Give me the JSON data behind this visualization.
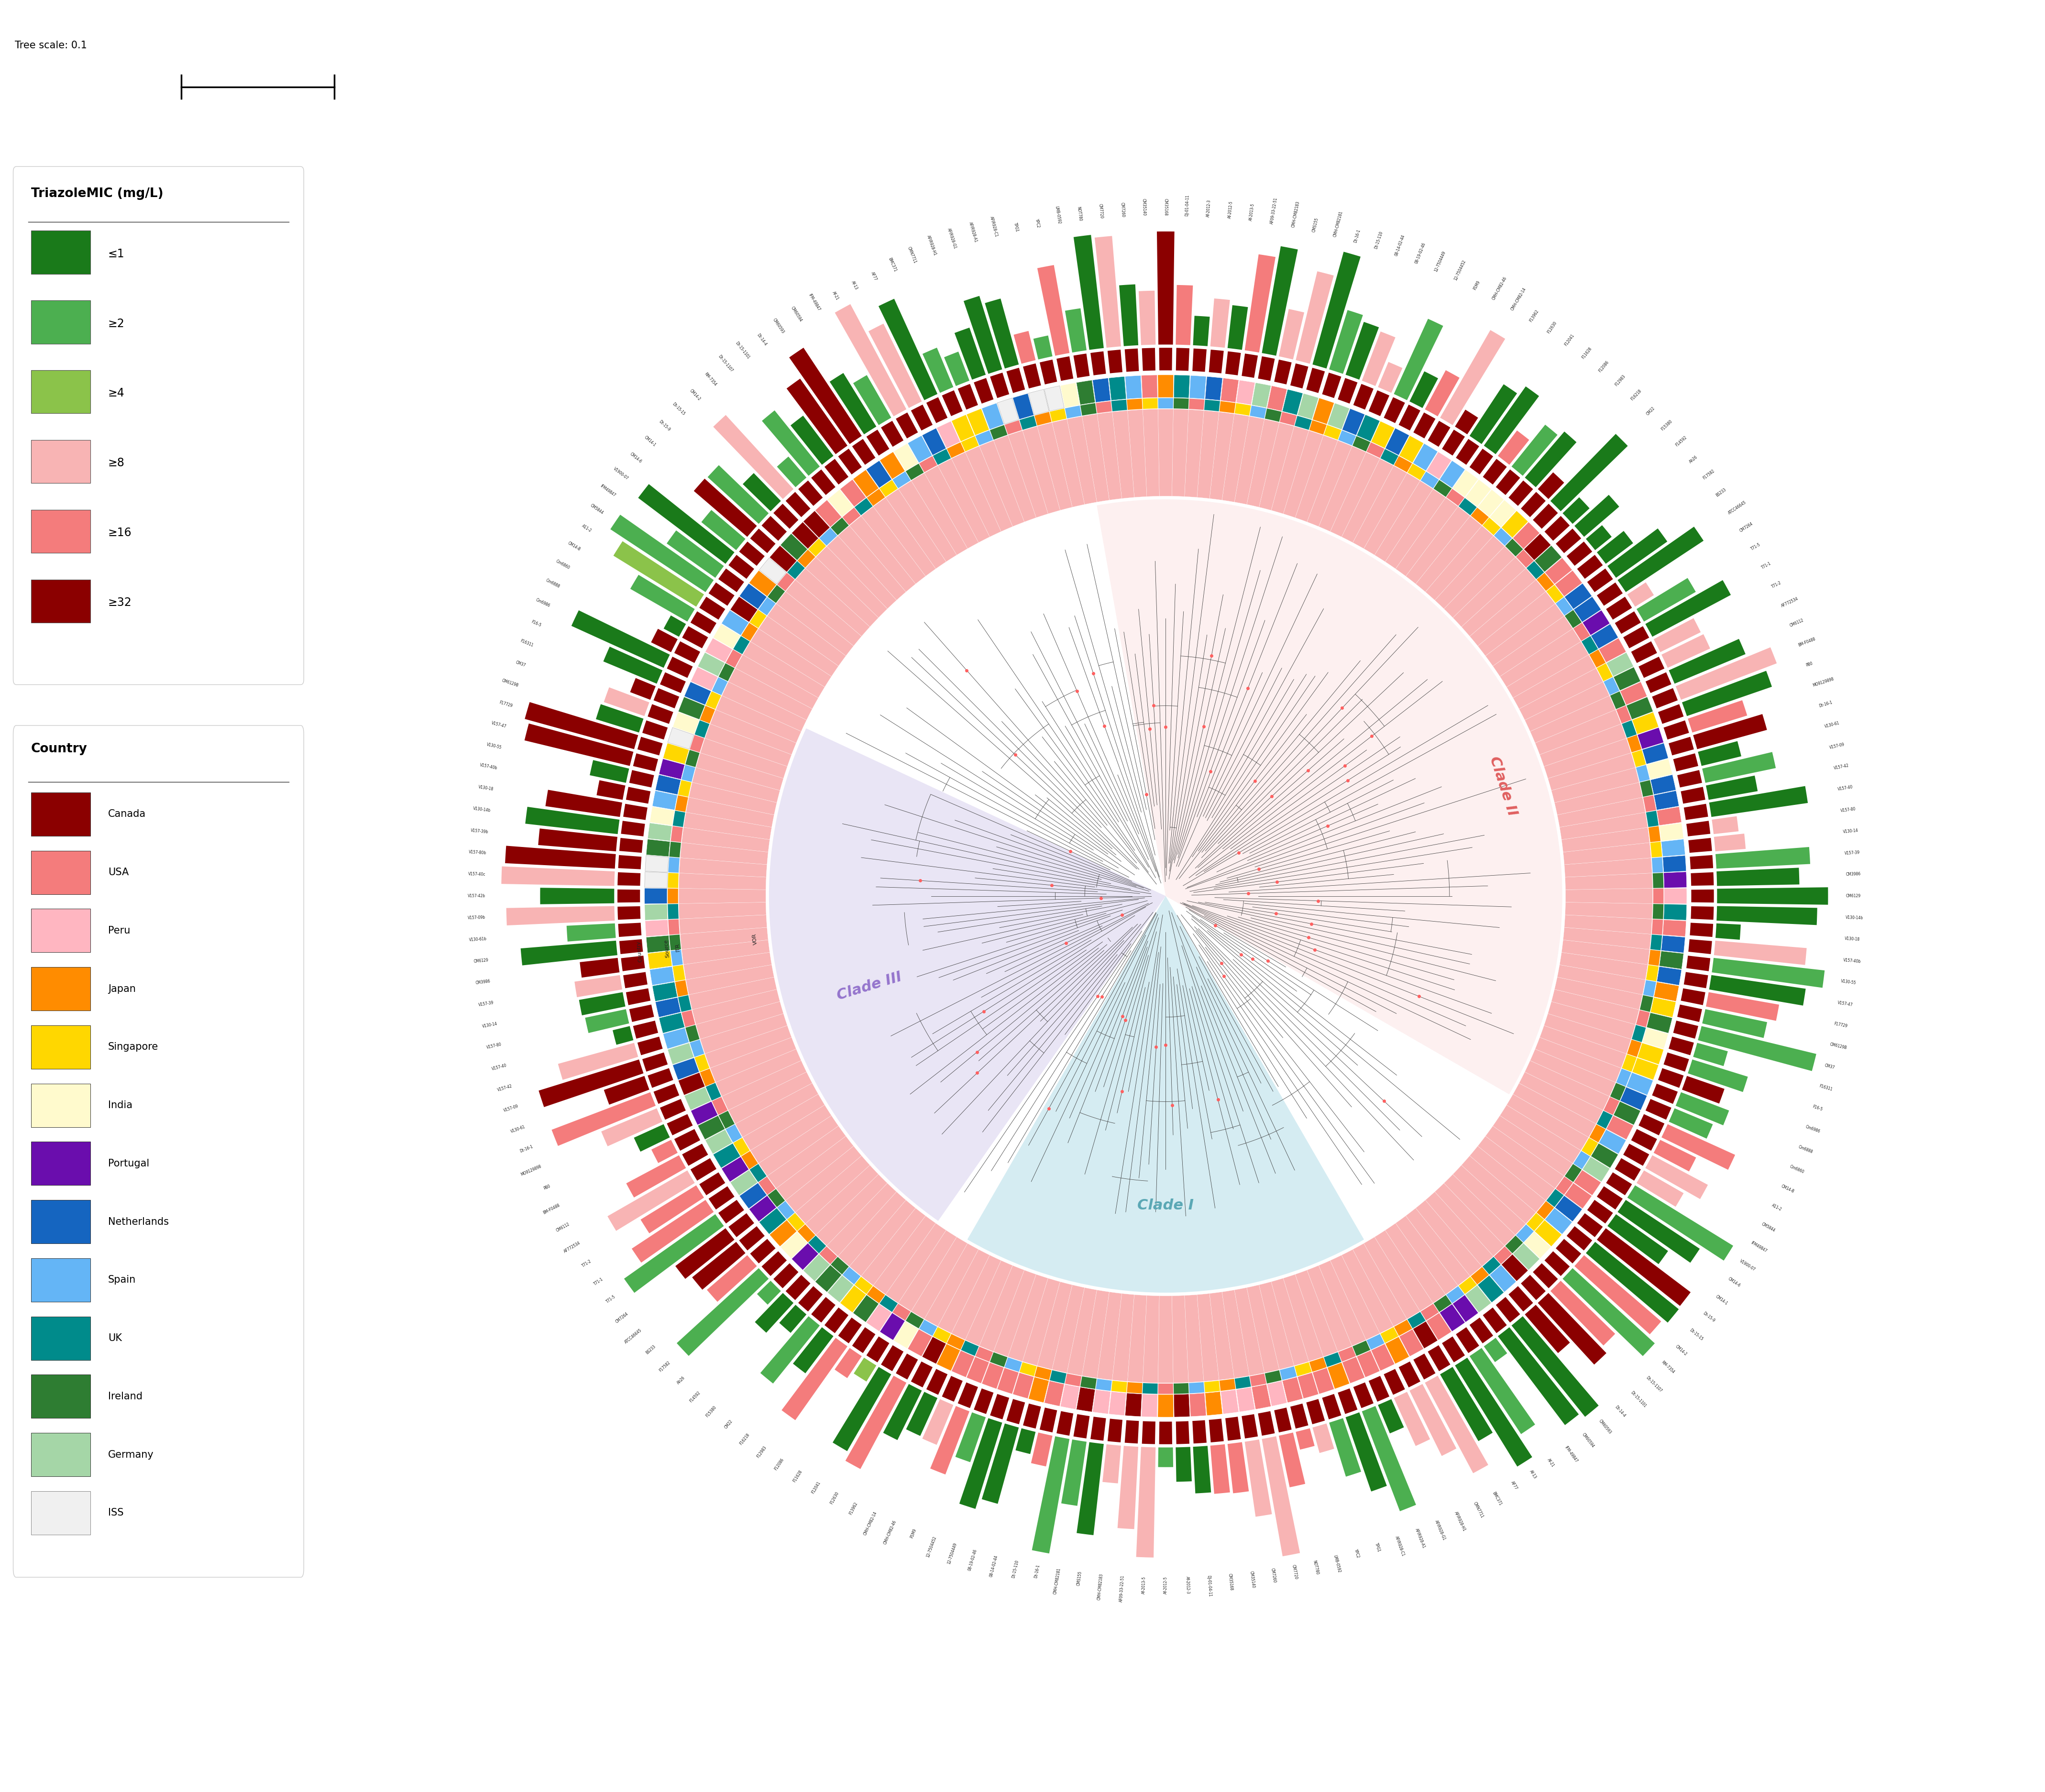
{
  "title": "Tree scale: 0.1",
  "background_color": "#ffffff",
  "mic_legend": {
    "title": "TriazoleMIC (mg/L)",
    "entries": [
      {
        "label": "≤1",
        "color": "#1a7a1a"
      },
      {
        "label": "≥2",
        "color": "#4caf50"
      },
      {
        "label": "≥4",
        "color": "#8bc34a"
      },
      {
        "label": "≥8",
        "color": "#f8b4b4"
      },
      {
        "label": "≥16",
        "color": "#f47c7c"
      },
      {
        "label": "≥32",
        "color": "#8b0000"
      }
    ]
  },
  "country_legend": {
    "title": "Country",
    "entries": [
      {
        "label": "Canada",
        "color": "#8b0000"
      },
      {
        "label": "USA",
        "color": "#f47c7c"
      },
      {
        "label": "Peru",
        "color": "#ffb6c1"
      },
      {
        "label": "Japan",
        "color": "#ff8c00"
      },
      {
        "label": "Singapore",
        "color": "#ffd700"
      },
      {
        "label": "India",
        "color": "#fffacd"
      },
      {
        "label": "Portugal",
        "color": "#6a0dad"
      },
      {
        "label": "Netherlands",
        "color": "#1565c0"
      },
      {
        "label": "Spain",
        "color": "#64b5f6"
      },
      {
        "label": "UK",
        "color": "#008b8b"
      },
      {
        "label": "Ireland",
        "color": "#2e7d32"
      },
      {
        "label": "Germany",
        "color": "#a5d6a7"
      },
      {
        "label": "ISS",
        "color": "#f0f0f0"
      }
    ]
  },
  "n_taxa": 200,
  "mic_colors": {
    "<=1": "#1a7a1a",
    ">=2": "#4caf50",
    ">=4": "#8bc34a",
    ">=8": "#f8b4b4",
    ">=16": "#f47c7c",
    ">=32": "#8b0000"
  },
  "country_colors": {
    "Canada": "#8b0000",
    "USA": "#f47c7c",
    "Peru": "#ffb6c1",
    "Japan": "#ff8c00",
    "Singapore": "#ffd700",
    "India": "#fffacd",
    "Portugal": "#6a0dad",
    "Netherlands": "#1565c0",
    "Spain": "#64b5f6",
    "UK": "#008b8b",
    "Ireland": "#2e7d32",
    "Germany": "#a5d6a7",
    "ISS": "#f0f0f0"
  }
}
